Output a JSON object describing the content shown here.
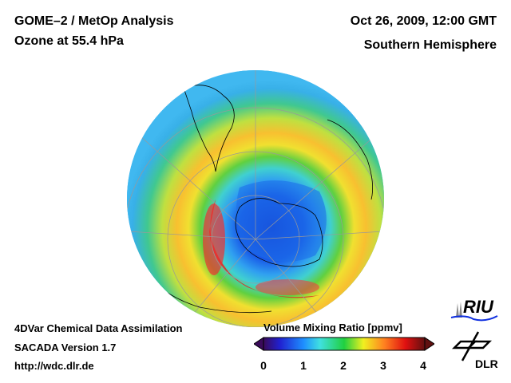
{
  "header": {
    "title_line1": "GOME–2 / MetOp Analysis",
    "title_line2": "Ozone at 55.4 hPa",
    "date": "Oct 26, 2009, 12:00 GMT",
    "region": "Southern Hemisphere"
  },
  "footer": {
    "line1": "4DVar Chemical Data Assimilation",
    "line2": "SACADA Version 1.7",
    "line3": "http://wdc.dlr.de"
  },
  "colorbar": {
    "title": "Volume Mixing Ratio [ppmv]",
    "ticks": [
      "0",
      "1",
      "2",
      "3",
      "4"
    ],
    "range": [
      0,
      4
    ],
    "colors": [
      "#3a0a5a",
      "#2020d0",
      "#1e90ff",
      "#40e0e0",
      "#20d040",
      "#f0f020",
      "#ff8020",
      "#e01010",
      "#601010"
    ]
  },
  "logos": {
    "riu": "RIU",
    "dlr": "DLR"
  }
}
